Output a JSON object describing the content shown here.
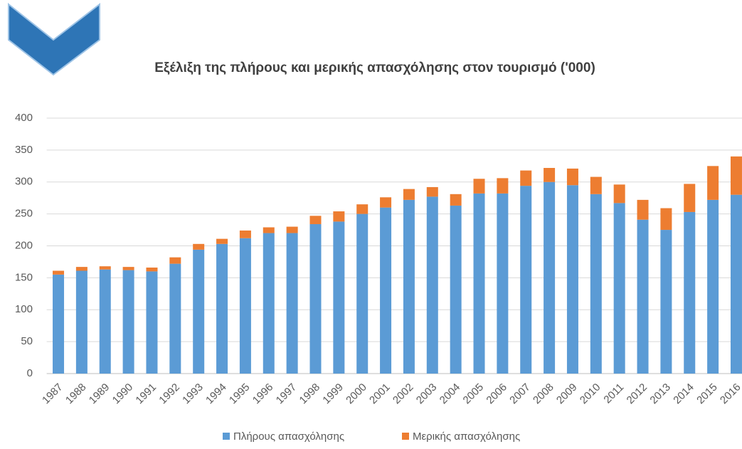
{
  "chart_data": {
    "type": "stacked_bar",
    "title": "Εξέλιξη της πλήρους και μερικής απασχόλησης στον τουρισμό ('000)",
    "categories": [
      "1987",
      "1988",
      "1989",
      "1990",
      "1991",
      "1992",
      "1993",
      "1994",
      "1995",
      "1996",
      "1997",
      "1998",
      "1999",
      "2000",
      "2001",
      "2002",
      "2003",
      "2004",
      "2005",
      "2006",
      "2007",
      "2008",
      "2009",
      "2010",
      "2011",
      "2012",
      "2013",
      "2014",
      "2015",
      "2016"
    ],
    "series": [
      {
        "name": "Πλήρους απασχόλησης",
        "color": "#5b9bd5",
        "values": [
          155,
          161,
          163,
          162,
          160,
          172,
          194,
          203,
          212,
          220,
          220,
          234,
          238,
          250,
          260,
          272,
          277,
          263,
          282,
          282,
          294,
          300,
          295,
          281,
          267,
          241,
          225,
          253,
          272,
          280
        ]
      },
      {
        "name": "Μερικής απασχόλησης",
        "color": "#ed7d31",
        "values": [
          6,
          6,
          5,
          5,
          6,
          10,
          9,
          8,
          12,
          9,
          10,
          13,
          16,
          15,
          16,
          17,
          15,
          18,
          23,
          24,
          24,
          22,
          26,
          27,
          29,
          31,
          34,
          44,
          53,
          60
        ]
      }
    ],
    "ylim": [
      0,
      400
    ],
    "yticks": [
      0,
      50,
      100,
      150,
      200,
      250,
      300,
      350,
      400
    ],
    "grid": true,
    "legend": "bottom"
  }
}
